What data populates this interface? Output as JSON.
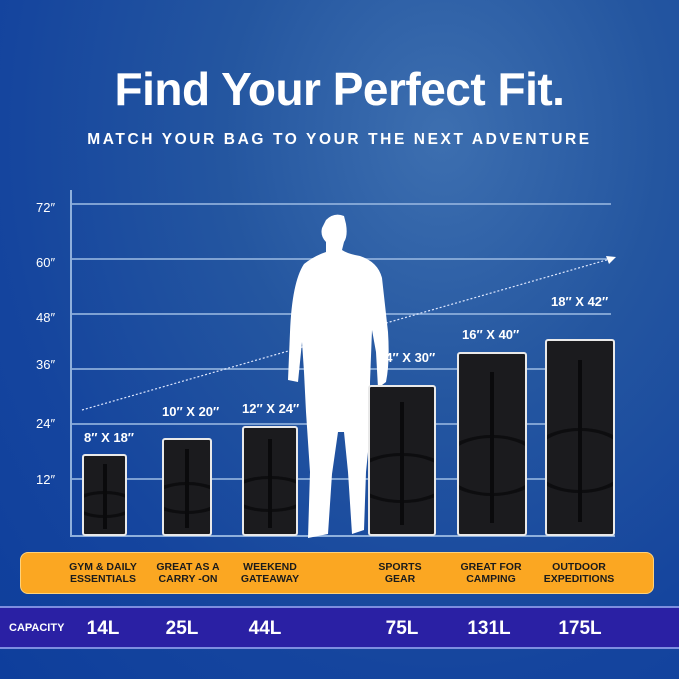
{
  "title": "Find Your Perfect Fit.",
  "subtitle": "MATCH YOUR BAG TO YOUR THE NEXT ADVENTURE",
  "y_ticks": [
    "72″",
    "60″",
    "48″",
    "36″",
    "24″",
    "12″"
  ],
  "bags": [
    {
      "size": "8″ X 18″",
      "use": [
        "GYM & DAILY",
        "ESSENTIALS"
      ],
      "capacity": "14L"
    },
    {
      "size": "10″ X 20″",
      "use": [
        "GREAT AS A",
        "CARRY -ON"
      ],
      "capacity": "25L"
    },
    {
      "size": "12″ X 24″",
      "use": [
        "WEEKEND",
        "GATEAWAY"
      ],
      "capacity": "44L"
    },
    {
      "size": "14″ X 30″",
      "use": [
        "SPORTS",
        "GEAR"
      ],
      "capacity": "75L"
    },
    {
      "size": "16″ X 40″",
      "use": [
        "GREAT FOR",
        "CAMPING"
      ],
      "capacity": "131L"
    },
    {
      "size": "18″ X 42″",
      "use": [
        "OUTDOOR",
        "EXPEDITIONS"
      ],
      "capacity": "175L"
    }
  ],
  "capacity_label": "CAPACITY",
  "colors": {
    "use_band": "#fba722",
    "capacity_band": "#2a20a4",
    "background": "#15459e"
  }
}
